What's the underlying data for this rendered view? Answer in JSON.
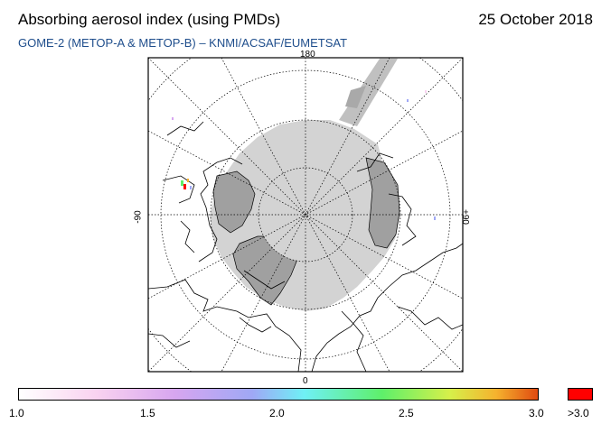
{
  "header": {
    "title": "Absorbing aerosol index (using PMDs)",
    "date": "25 October 2018",
    "subtitle": "GOME-2 (METOP-A & METOP-B)  –  KNMI/ACSAF/EUMETSAT"
  },
  "map": {
    "projection": "polar-stereographic-north",
    "lon_labels": {
      "top": "180",
      "bottom": "0",
      "left": "-90",
      "right": "+90"
    },
    "colors": {
      "no_data": "#d3d3d3",
      "land_no_data": "#a9a9a9",
      "coastline": "#000000"
    }
  },
  "colorbar": {
    "labels": [
      "1.0",
      "1.5",
      "2.0",
      "2.5",
      "3.0"
    ],
    "over_label": ">3.0",
    "over_color": "#ff0000",
    "range": [
      1.0,
      3.0
    ]
  }
}
